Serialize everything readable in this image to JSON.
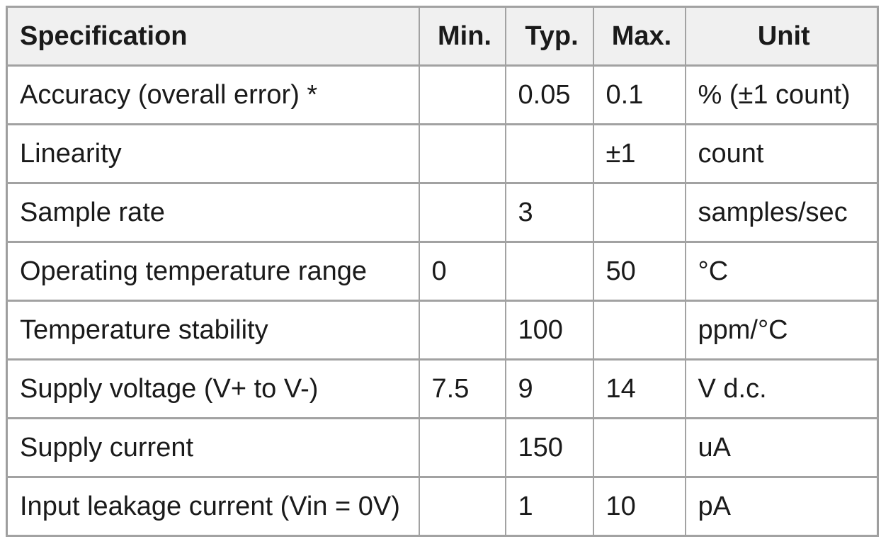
{
  "table": {
    "headers": {
      "spec": "Specification",
      "min": "Min.",
      "typ": "Typ.",
      "max": "Max.",
      "unit": "Unit"
    },
    "rows": [
      {
        "spec": "Accuracy (overall error) *",
        "min": "",
        "typ": "0.05",
        "max": "0.1",
        "unit": "% (±1 count)"
      },
      {
        "spec": "Linearity",
        "min": "",
        "typ": "",
        "max": "±1",
        "unit": "count"
      },
      {
        "spec": "Sample rate",
        "min": "",
        "typ": "3",
        "max": "",
        "unit": "samples/sec"
      },
      {
        "spec": "Operating temperature range",
        "min": "0",
        "typ": "",
        "max": "50",
        "unit": "°C"
      },
      {
        "spec": "Temperature stability",
        "min": "",
        "typ": "100",
        "max": "",
        "unit": "ppm/°C"
      },
      {
        "spec": "Supply voltage (V+ to V-)",
        "min": "7.5",
        "typ": "9",
        "max": "14",
        "unit": "V d.c."
      },
      {
        "spec": "Supply current",
        "min": "",
        "typ": "150",
        "max": "",
        "unit": "uA"
      },
      {
        "spec": "Input leakage current (Vin = 0V)",
        "min": "",
        "typ": "1",
        "max": "10",
        "unit": "pA"
      }
    ]
  },
  "colors": {
    "page_background": "#ffffff",
    "header_background": "#f0f0f0",
    "border": "#a2a2a2",
    "text": "#1a1a1a"
  }
}
